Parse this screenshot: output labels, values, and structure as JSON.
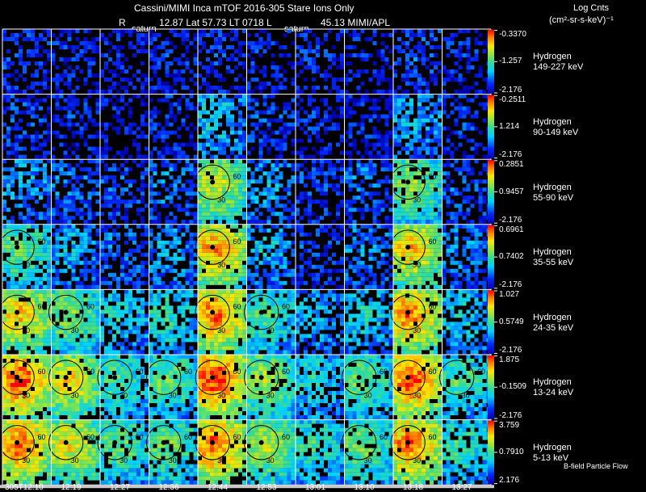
{
  "header": {
    "title": "Cassini/MIMI Inca mTOF  2016-305   Stare   Ions Only",
    "line2_left": "R",
    "line2_main": "12.87 Lat 57.73 LT 0718 L",
    "line2_right": "45.13  MIMI/APL",
    "label_saturn_1": "saturn",
    "label_saturn_2": "saturn",
    "units_title": "Log Cnts",
    "units_formula": "(cm²-sr-s-keV)⁻¹"
  },
  "chart_data": {
    "type": "heatmap",
    "title": "Cassini/MIMI Inca mTOF 2016-305 Stare Ions Only",
    "xlabel": "Time (UT)",
    "x_tick_labels": [
      "305T12:10",
      "12:19",
      "12:27",
      "12:36",
      "12:44",
      "12:53",
      "13:01",
      "13:10",
      "13:18",
      "13:27"
    ],
    "colormap": "rainbow (blue low → red high)",
    "rows": [
      {
        "species": "Hydrogen",
        "energy": "149-227 keV",
        "cbar_max": "-0.3370",
        "cbar_mid": "-1.257",
        "cbar_min": "-2.176",
        "intensity": [
          0.15,
          0.12,
          0.1,
          0.12,
          0.14,
          0.12,
          0.12,
          0.1,
          0.18,
          0.12
        ]
      },
      {
        "species": "Hydrogen",
        "energy": "90-149 keV",
        "cbar_max": "-0.2511",
        "cbar_mid": "1.214",
        "cbar_min": "-2.176",
        "intensity": [
          0.16,
          0.14,
          0.1,
          0.14,
          0.35,
          0.16,
          0.12,
          0.12,
          0.3,
          0.14
        ]
      },
      {
        "species": "Hydrogen",
        "energy": "55-90 keV",
        "cbar_max": "0.2851",
        "cbar_mid": "0.9457",
        "cbar_min": "-2.176",
        "intensity": [
          0.3,
          0.22,
          0.18,
          0.24,
          0.62,
          0.3,
          0.16,
          0.22,
          0.55,
          0.2
        ]
      },
      {
        "species": "Hydrogen",
        "energy": "35-55 keV",
        "cbar_max": "0.6961",
        "cbar_mid": "0.7402",
        "cbar_min": "-2.176",
        "intensity": [
          0.5,
          0.3,
          0.22,
          0.28,
          0.78,
          0.32,
          0.16,
          0.26,
          0.72,
          0.26
        ]
      },
      {
        "species": "Hydrogen",
        "energy": "24-35 keV",
        "cbar_max": "1.027",
        "cbar_mid": "0.5749",
        "cbar_min": "-2.176",
        "intensity": [
          0.72,
          0.55,
          0.38,
          0.42,
          0.82,
          0.46,
          0.3,
          0.38,
          0.8,
          0.36
        ]
      },
      {
        "species": "Hydrogen",
        "energy": "13-24 keV",
        "cbar_max": "1.875",
        "cbar_mid": "-0.1509",
        "cbar_min": "-2.176",
        "intensity": [
          0.86,
          0.7,
          0.46,
          0.5,
          0.88,
          0.58,
          0.4,
          0.5,
          0.86,
          0.46
        ]
      },
      {
        "species": "Hydrogen",
        "energy": "5-13 keV",
        "cbar_max": "3.759",
        "cbar_mid": "0.7910",
        "cbar_min": "2.176",
        "intensity": [
          0.82,
          0.68,
          0.5,
          0.52,
          0.84,
          0.6,
          0.44,
          0.52,
          0.82,
          0.44
        ]
      }
    ],
    "contour_labels": [
      "30",
      "60"
    ],
    "footnote": "B-field Particle Flow"
  },
  "colors": {
    "background": "#000000",
    "grid": "#ffffff",
    "time_axis_bar": "#c8c8c8"
  }
}
